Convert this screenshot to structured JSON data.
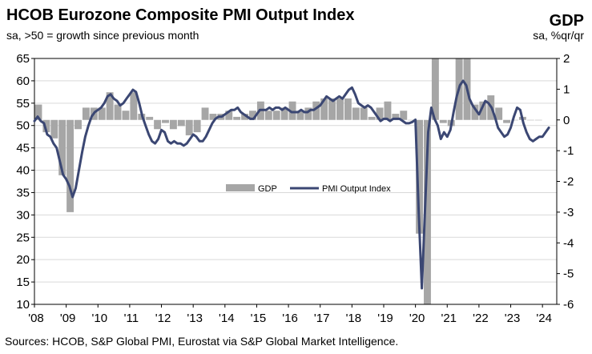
{
  "header": {
    "title": "HCOB Eurozone Composite PMI Output Index",
    "subtitle": "sa, >50 = growth since previous month",
    "right_title": "GDP",
    "right_subtitle": "sa, %qr/qr"
  },
  "footer": {
    "source": "Sources: HCOB, S&P Global PMI, Eurostat via S&P Global Market Intelligence."
  },
  "chart_data": {
    "type": "bar+line",
    "x_tick_labels": [
      "'08",
      "'09",
      "'10",
      "'11",
      "'12",
      "'13",
      "'14",
      "'15",
      "'16",
      "'17",
      "'18",
      "'19",
      "'20",
      "'21",
      "'22",
      "'23",
      "'24"
    ],
    "y_left": {
      "ylim": [
        10,
        65
      ],
      "ticks": [
        10,
        15,
        20,
        25,
        30,
        35,
        40,
        45,
        50,
        55,
        60,
        65
      ]
    },
    "y_right": {
      "ylim": [
        -6,
        2
      ],
      "ticks": [
        -6,
        -5,
        -4,
        -3,
        -2,
        -1,
        0,
        1,
        2
      ]
    },
    "grid": true,
    "legend": {
      "placement": "center",
      "items": [
        "GDP",
        "PMI Output Index"
      ]
    },
    "gdp_bar_color": "#a6a6a6",
    "pmi_line_color": "#3b4773",
    "gdp_series": {
      "name": "GDP",
      "axis": "right",
      "quarters": [
        "2008Q1",
        "2008Q2",
        "2008Q3",
        "2008Q4",
        "2009Q1",
        "2009Q2",
        "2009Q3",
        "2009Q4",
        "2010Q1",
        "2010Q2",
        "2010Q3",
        "2010Q4",
        "2011Q1",
        "2011Q2",
        "2011Q3",
        "2011Q4",
        "2012Q1",
        "2012Q2",
        "2012Q3",
        "2012Q4",
        "2013Q1",
        "2013Q2",
        "2013Q3",
        "2013Q4",
        "2014Q1",
        "2014Q2",
        "2014Q3",
        "2014Q4",
        "2015Q1",
        "2015Q2",
        "2015Q3",
        "2015Q4",
        "2016Q1",
        "2016Q2",
        "2016Q3",
        "2016Q4",
        "2017Q1",
        "2017Q2",
        "2017Q3",
        "2017Q4",
        "2018Q1",
        "2018Q2",
        "2018Q3",
        "2018Q4",
        "2019Q1",
        "2019Q2",
        "2019Q3",
        "2019Q4",
        "2020Q1",
        "2020Q2",
        "2020Q3",
        "2020Q4",
        "2021Q1",
        "2021Q2",
        "2021Q3",
        "2021Q4",
        "2022Q1",
        "2022Q2",
        "2022Q3",
        "2022Q4",
        "2023Q1",
        "2023Q2",
        "2023Q3",
        "2023Q4"
      ],
      "values": [
        0.5,
        -0.4,
        -0.6,
        -1.8,
        -3.0,
        -0.3,
        0.4,
        0.4,
        0.4,
        0.9,
        0.5,
        0.3,
        0.9,
        0.2,
        0.1,
        -0.3,
        -0.1,
        -0.3,
        -0.2,
        -0.5,
        -0.4,
        0.4,
        0.2,
        0.2,
        0.3,
        0.1,
        0.2,
        0.3,
        0.6,
        0.3,
        0.3,
        0.4,
        0.6,
        0.3,
        0.4,
        0.6,
        0.7,
        0.7,
        0.7,
        0.7,
        0.4,
        0.4,
        0.1,
        0.4,
        0.6,
        0.2,
        0.3,
        0.0,
        -3.7,
        -11.6,
        12.6,
        -0.1,
        -0.2,
        2.1,
        2.3,
        0.5,
        0.6,
        0.8,
        0.4,
        -0.1,
        0.0,
        0.1,
        0.0,
        0.0
      ]
    },
    "pmi_series": {
      "name": "PMI Output Index",
      "axis": "left",
      "points": [
        [
          2008.0,
          51.0
        ],
        [
          2008.1,
          52.0
        ],
        [
          2008.2,
          51.0
        ],
        [
          2008.3,
          50.5
        ],
        [
          2008.4,
          48.0
        ],
        [
          2008.5,
          47.5
        ],
        [
          2008.6,
          46.0
        ],
        [
          2008.7,
          45.0
        ],
        [
          2008.8,
          42.0
        ],
        [
          2008.9,
          39.0
        ],
        [
          2009.0,
          38.0
        ],
        [
          2009.1,
          36.5
        ],
        [
          2009.2,
          34.0
        ],
        [
          2009.3,
          36.0
        ],
        [
          2009.4,
          40.0
        ],
        [
          2009.5,
          44.0
        ],
        [
          2009.6,
          47.5
        ],
        [
          2009.7,
          50.0
        ],
        [
          2009.8,
          52.0
        ],
        [
          2009.9,
          53.0
        ],
        [
          2010.0,
          53.5
        ],
        [
          2010.1,
          54.0
        ],
        [
          2010.2,
          55.0
        ],
        [
          2010.3,
          56.5
        ],
        [
          2010.4,
          57.0
        ],
        [
          2010.5,
          56.0
        ],
        [
          2010.6,
          55.5
        ],
        [
          2010.7,
          54.5
        ],
        [
          2010.8,
          55.0
        ],
        [
          2010.9,
          56.0
        ],
        [
          2011.0,
          57.0
        ],
        [
          2011.1,
          58.0
        ],
        [
          2011.2,
          57.5
        ],
        [
          2011.3,
          55.0
        ],
        [
          2011.4,
          52.0
        ],
        [
          2011.5,
          50.0
        ],
        [
          2011.6,
          48.0
        ],
        [
          2011.7,
          46.5
        ],
        [
          2011.8,
          46.0
        ],
        [
          2011.9,
          47.0
        ],
        [
          2012.0,
          49.0
        ],
        [
          2012.1,
          48.5
        ],
        [
          2012.2,
          46.5
        ],
        [
          2012.3,
          46.0
        ],
        [
          2012.4,
          46.5
        ],
        [
          2012.5,
          46.0
        ],
        [
          2012.6,
          46.0
        ],
        [
          2012.7,
          45.5
        ],
        [
          2012.8,
          46.0
        ],
        [
          2012.9,
          47.0
        ],
        [
          2013.0,
          48.0
        ],
        [
          2013.1,
          47.5
        ],
        [
          2013.2,
          46.5
        ],
        [
          2013.3,
          46.5
        ],
        [
          2013.4,
          47.5
        ],
        [
          2013.5,
          49.0
        ],
        [
          2013.6,
          50.5
        ],
        [
          2013.7,
          51.5
        ],
        [
          2013.8,
          52.0
        ],
        [
          2013.9,
          52.0
        ],
        [
          2014.0,
          52.5
        ],
        [
          2014.1,
          53.0
        ],
        [
          2014.2,
          53.5
        ],
        [
          2014.3,
          53.5
        ],
        [
          2014.4,
          54.0
        ],
        [
          2014.5,
          53.0
        ],
        [
          2014.6,
          52.5
        ],
        [
          2014.7,
          52.0
        ],
        [
          2014.8,
          51.5
        ],
        [
          2014.9,
          51.5
        ],
        [
          2015.0,
          52.5
        ],
        [
          2015.1,
          53.5
        ],
        [
          2015.2,
          53.5
        ],
        [
          2015.3,
          53.5
        ],
        [
          2015.4,
          54.0
        ],
        [
          2015.5,
          53.5
        ],
        [
          2015.6,
          54.0
        ],
        [
          2015.7,
          54.0
        ],
        [
          2015.8,
          53.5
        ],
        [
          2015.9,
          54.0
        ],
        [
          2016.0,
          53.5
        ],
        [
          2016.1,
          53.0
        ],
        [
          2016.2,
          53.0
        ],
        [
          2016.3,
          53.0
        ],
        [
          2016.4,
          53.5
        ],
        [
          2016.5,
          53.0
        ],
        [
          2016.6,
          53.0
        ],
        [
          2016.7,
          53.5
        ],
        [
          2016.8,
          53.5
        ],
        [
          2016.9,
          54.0
        ],
        [
          2017.0,
          54.5
        ],
        [
          2017.1,
          55.5
        ],
        [
          2017.2,
          56.5
        ],
        [
          2017.3,
          56.0
        ],
        [
          2017.4,
          55.5
        ],
        [
          2017.5,
          56.0
        ],
        [
          2017.6,
          56.5
        ],
        [
          2017.7,
          56.0
        ],
        [
          2017.8,
          57.0
        ],
        [
          2017.9,
          58.0
        ],
        [
          2018.0,
          58.5
        ],
        [
          2018.1,
          57.0
        ],
        [
          2018.2,
          55.0
        ],
        [
          2018.3,
          54.5
        ],
        [
          2018.4,
          54.0
        ],
        [
          2018.5,
          54.5
        ],
        [
          2018.6,
          54.0
        ],
        [
          2018.7,
          53.0
        ],
        [
          2018.8,
          52.0
        ],
        [
          2018.9,
          51.0
        ],
        [
          2019.0,
          51.5
        ],
        [
          2019.1,
          51.5
        ],
        [
          2019.2,
          51.0
        ],
        [
          2019.3,
          51.5
        ],
        [
          2019.4,
          51.5
        ],
        [
          2019.5,
          51.5
        ],
        [
          2019.6,
          51.0
        ],
        [
          2019.7,
          50.5
        ],
        [
          2019.8,
          50.5
        ],
        [
          2019.9,
          50.8
        ],
        [
          2020.0,
          51.3
        ],
        [
          2020.1,
          31.0
        ],
        [
          2020.2,
          13.6
        ],
        [
          2020.3,
          31.0
        ],
        [
          2020.4,
          48.5
        ],
        [
          2020.5,
          54.0
        ],
        [
          2020.6,
          51.5
        ],
        [
          2020.7,
          50.0
        ],
        [
          2020.8,
          47.0
        ],
        [
          2020.9,
          48.5
        ],
        [
          2021.0,
          47.5
        ],
        [
          2021.1,
          49.0
        ],
        [
          2021.2,
          53.0
        ],
        [
          2021.3,
          56.5
        ],
        [
          2021.4,
          59.0
        ],
        [
          2021.5,
          60.0
        ],
        [
          2021.6,
          59.0
        ],
        [
          2021.7,
          56.0
        ],
        [
          2021.8,
          54.5
        ],
        [
          2021.9,
          53.5
        ],
        [
          2022.0,
          52.5
        ],
        [
          2022.1,
          54.0
        ],
        [
          2022.2,
          55.5
        ],
        [
          2022.3,
          55.0
        ],
        [
          2022.4,
          54.0
        ],
        [
          2022.5,
          52.0
        ],
        [
          2022.6,
          49.5
        ],
        [
          2022.7,
          48.5
        ],
        [
          2022.8,
          47.5
        ],
        [
          2022.9,
          48.0
        ],
        [
          2023.0,
          49.5
        ],
        [
          2023.1,
          52.0
        ],
        [
          2023.2,
          54.0
        ],
        [
          2023.3,
          53.5
        ],
        [
          2023.4,
          50.5
        ],
        [
          2023.5,
          48.5
        ],
        [
          2023.6,
          47.0
        ],
        [
          2023.7,
          46.5
        ],
        [
          2023.8,
          47.0
        ],
        [
          2023.9,
          47.5
        ],
        [
          2024.0,
          47.5
        ],
        [
          2024.1,
          48.5
        ],
        [
          2024.2,
          49.5
        ]
      ]
    }
  }
}
